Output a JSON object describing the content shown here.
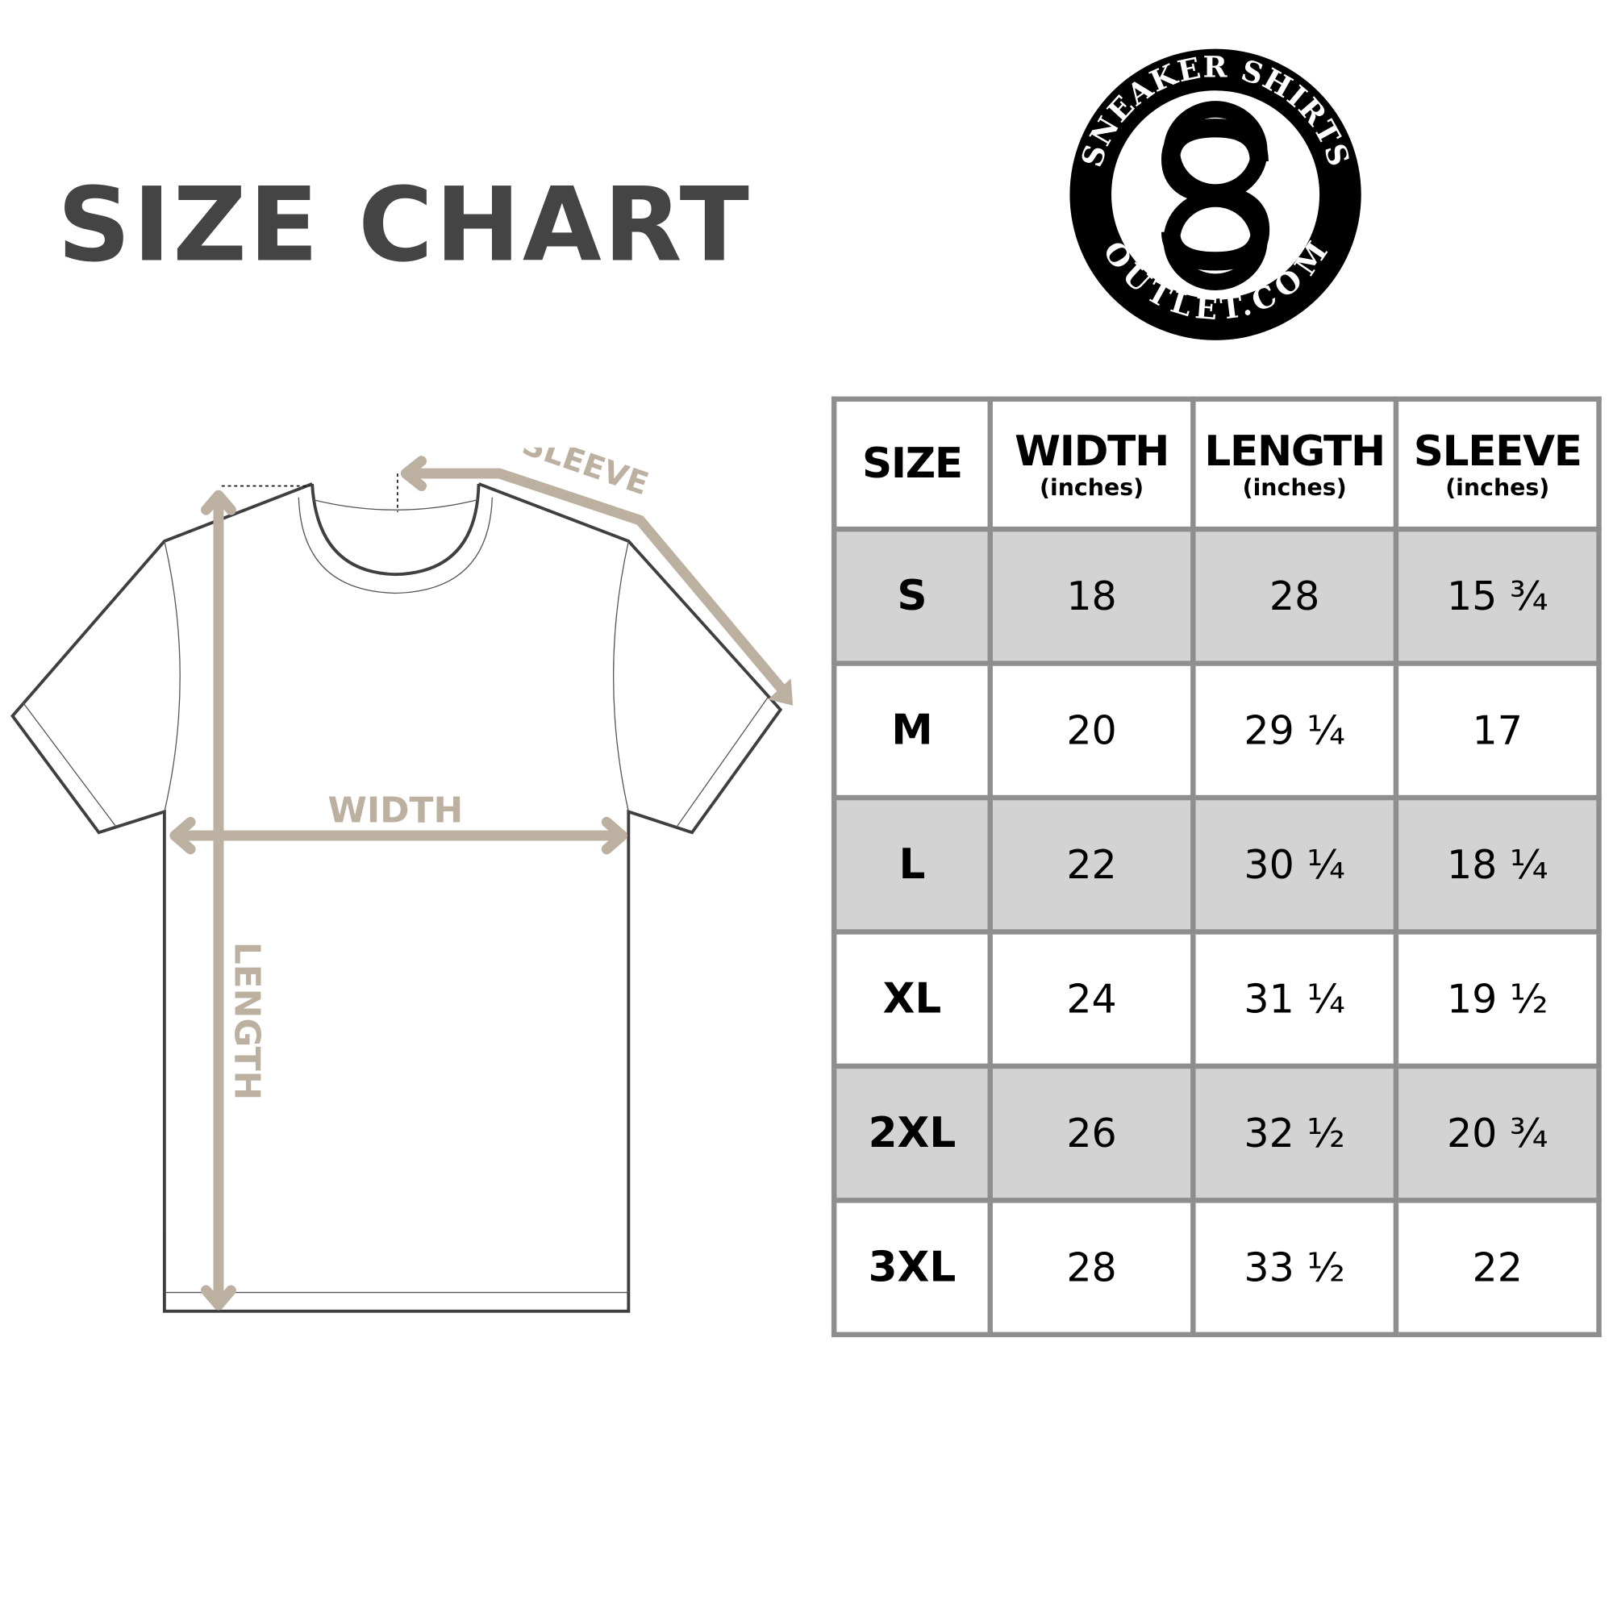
{
  "title": "SIZE CHART",
  "logo": {
    "top_text": "SNEAKER SHIRTS",
    "bottom_text": "OUTLET.COM",
    "monogram": "SO"
  },
  "diagram": {
    "labels": {
      "sleeve": "SLEEVE",
      "width": "WIDTH",
      "length": "LENGTH"
    },
    "arrow_color": "#bcb0a1"
  },
  "table": {
    "headers": [
      {
        "label": "SIZE",
        "unit": ""
      },
      {
        "label": "WIDTH",
        "unit": "(inches)"
      },
      {
        "label": "LENGTH",
        "unit": "(inches)"
      },
      {
        "label": "SLEEVE",
        "unit": "(inches)"
      }
    ],
    "rows": [
      [
        "S",
        "18",
        "28",
        "15 ¾"
      ],
      [
        "M",
        "20",
        "29 ¼",
        "17"
      ],
      [
        "L",
        "22",
        "30 ¼",
        "18 ¼"
      ],
      [
        "XL",
        "24",
        "31 ¼",
        "19 ½"
      ],
      [
        "2XL",
        "26",
        "32 ½",
        "20 ¾"
      ],
      [
        "3XL",
        "28",
        "33 ½",
        "22"
      ]
    ],
    "shade_color": "#d3d3d3",
    "border_color": "#8e8e8e"
  }
}
